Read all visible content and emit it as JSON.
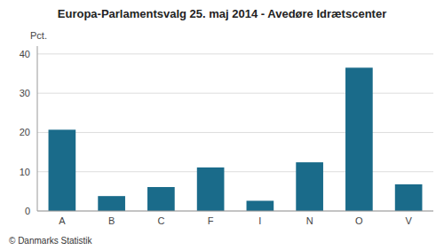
{
  "chart_data": {
    "type": "bar",
    "title": "Europa-Parlamentsvalg 25. maj 2014 - Avedøre Idrætscenter",
    "ylabel": "Pct.",
    "annotations": [
      "© Danmarks Statistik"
    ],
    "categories": [
      "A",
      "B",
      "C",
      "F",
      "I",
      "N",
      "O",
      "V"
    ],
    "values": [
      20.7,
      3.8,
      6.1,
      11.1,
      2.6,
      12.4,
      36.5,
      6.8
    ],
    "color": "#1a6b8a",
    "ylim": [
      0,
      42
    ],
    "yticks": [
      0,
      10,
      20,
      30,
      40
    ],
    "grid": true
  }
}
